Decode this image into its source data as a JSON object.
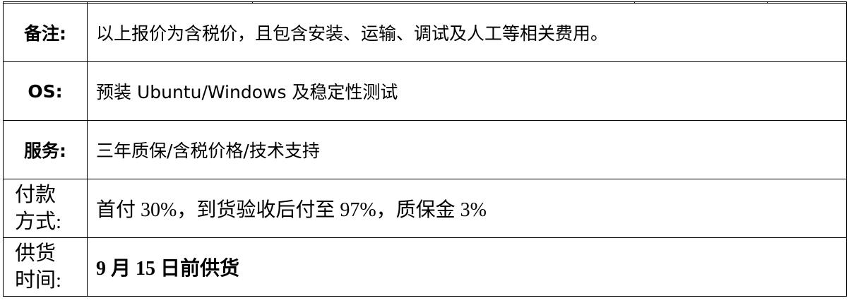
{
  "rows": [
    {
      "label": "备注:",
      "value": "以上报价为含税价，且包含安装、运输、调试及人工等相关费用。"
    },
    {
      "label": "OS:",
      "value": "预装 Ubuntu/Windows 及稳定性测试"
    },
    {
      "label": "服务:",
      "value": "三年质保/含税价格/技术支持"
    },
    {
      "label_line1": "付款",
      "label_line2": "方式:",
      "value": "首付 30%，到货验收后付至 97%，质保金 3%"
    },
    {
      "label_line1": "供货",
      "label_line2": "时间:",
      "value": "9 月 15 日前供货"
    }
  ]
}
